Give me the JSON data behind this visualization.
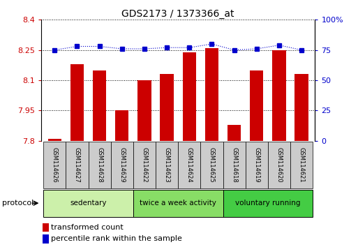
{
  "title": "GDS2173 / 1373366_at",
  "samples": [
    "GSM114626",
    "GSM114627",
    "GSM114628",
    "GSM114629",
    "GSM114622",
    "GSM114623",
    "GSM114624",
    "GSM114625",
    "GSM114618",
    "GSM114619",
    "GSM114620",
    "GSM114621"
  ],
  "red_values": [
    7.81,
    8.18,
    8.15,
    7.95,
    8.1,
    8.13,
    8.24,
    8.26,
    7.88,
    8.15,
    8.25,
    8.13
  ],
  "blue_values": [
    75,
    78,
    78,
    76,
    76,
    77,
    77,
    80,
    75,
    76,
    79,
    75
  ],
  "ylim_left": [
    7.8,
    8.4
  ],
  "ylim_right": [
    0,
    100
  ],
  "yticks_left": [
    7.8,
    7.95,
    8.1,
    8.25,
    8.4
  ],
  "yticks_right": [
    0,
    25,
    50,
    75,
    100
  ],
  "ytick_labels_left": [
    "7.8",
    "7.95",
    "8.1",
    "8.25",
    "8.4"
  ],
  "ytick_labels_right": [
    "0",
    "25",
    "50",
    "75",
    "100%"
  ],
  "groups": [
    {
      "label": "sedentary",
      "start": 0,
      "end": 3,
      "color": "#ccf0aa"
    },
    {
      "label": "twice a week activity",
      "start": 4,
      "end": 7,
      "color": "#88dd66"
    },
    {
      "label": "voluntary running",
      "start": 8,
      "end": 11,
      "color": "#44cc44"
    }
  ],
  "bar_color": "#cc0000",
  "dot_color": "#0000cc",
  "grid_color": "#000000",
  "background_color": "#ffffff",
  "protocol_label": "protocol",
  "legend_red": "transformed count",
  "legend_blue": "percentile rank within the sample",
  "bar_bottom": 7.8,
  "sample_box_color": "#cccccc"
}
